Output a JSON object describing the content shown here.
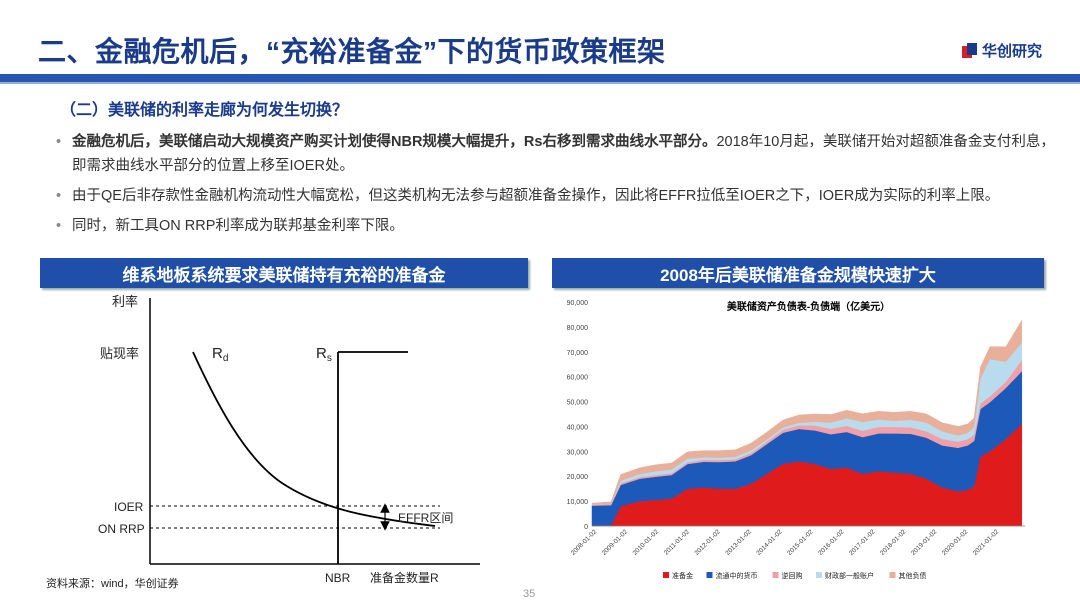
{
  "header": {
    "title": "二、金融危机后，“充裕准备金”下的货币政策框架",
    "brand": "华创研究"
  },
  "section": {
    "subtitle": "（二）美联储的利率走廊为何发生切换？"
  },
  "bullets": {
    "b1_bold": "金融危机后，美联储启动大规模资产购买计划使得NBR规模大幅提升，Rs右移到需求曲线水平部分。",
    "b1_rest": "2018年10月起，美联储开始对超额准备金支付利息，即需求曲线水平部分的位置上移至IOER处。",
    "b2": "由于QE后非存款性金融机构流动性大幅宽松，但这类机构无法参与超额准备金操作，因此将EFFR拉低至IOER之下，IOER成为实际的利率上限。",
    "b3": "同时，新工具ON RRP利率成为联邦基金利率下限。"
  },
  "left_panel": {
    "title": "维系地板系统要求美联储持有充裕的准备金",
    "y_axis_label": "利率",
    "discount_rate": "贴现率",
    "rd_label": "R",
    "rd_sub": "d",
    "rs_label": "R",
    "rs_sub": "s",
    "ioer": "IOER",
    "onrrp": "ON RRP",
    "effr_band": "EFFR区间",
    "nbr": "NBR",
    "x_axis_label": "准备金数量R"
  },
  "right_panel": {
    "title": "2008年后美联储准备金规模快速扩大"
  },
  "chart_data": {
    "type": "area",
    "title": "美联储资产负债表-负债端（亿美元）",
    "ylim": [
      0,
      90000
    ],
    "yticks": [
      "0",
      "10,000",
      "20,000",
      "30,000",
      "40,000",
      "50,000",
      "60,000",
      "70,000",
      "80,000",
      "90,000"
    ],
    "xticks": [
      "2008-01-02",
      "2009-01-02",
      "2010-01-02",
      "2011-01-02",
      "2012-01-02",
      "2013-01-02",
      "2014-01-02",
      "2015-01-02",
      "2016-01-02",
      "2017-01-02",
      "2018-01-02",
      "2019-01-02",
      "2020-01-02",
      "2021-01-02"
    ],
    "x": [
      2008.0,
      2008.6,
      2008.9,
      2009.5,
      2010.0,
      2010.5,
      2011.0,
      2011.5,
      2012.0,
      2012.5,
      2013.0,
      2013.5,
      2014.0,
      2014.5,
      2015.0,
      2015.5,
      2016.0,
      2016.5,
      2017.0,
      2017.5,
      2018.0,
      2018.5,
      2019.0,
      2019.5,
      2019.8,
      2020.0,
      2020.2,
      2020.5,
      2021.0,
      2021.5
    ],
    "series": [
      {
        "name": "准备金",
        "color": "#e01b1b",
        "values": [
          200,
          300,
          8000,
          10000,
          10500,
          11000,
          15000,
          15500,
          15000,
          15000,
          17000,
          21000,
          25000,
          26000,
          25000,
          23000,
          23500,
          21000,
          22000,
          21500,
          21000,
          19000,
          15500,
          14000,
          14500,
          16000,
          28000,
          30000,
          35000,
          41000
        ]
      },
      {
        "name": "流通中的货币",
        "color": "#1c59b8",
        "values": [
          8000,
          8100,
          8500,
          9000,
          9300,
          9500,
          9900,
          10300,
          10700,
          11000,
          11500,
          12000,
          12500,
          13000,
          13400,
          13900,
          14300,
          14700,
          15200,
          15700,
          16100,
          16500,
          16900,
          17400,
          17900,
          18200,
          19000,
          19800,
          20500,
          21200
        ]
      },
      {
        "name": "逆回购",
        "color": "#f2a0a8",
        "values": [
          400,
          500,
          700,
          700,
          700,
          700,
          700,
          800,
          800,
          800,
          900,
          1000,
          1200,
          1500,
          2000,
          2200,
          2500,
          2600,
          2600,
          2600,
          2600,
          2600,
          2600,
          2500,
          2500,
          2500,
          2300,
          2300,
          2500,
          4500
        ]
      },
      {
        "name": "财政部一般账户",
        "color": "#b8dcee",
        "values": [
          100,
          200,
          1000,
          1200,
          1500,
          1500,
          1500,
          1000,
          1000,
          1000,
          1000,
          800,
          900,
          1000,
          1500,
          2500,
          3000,
          3500,
          3000,
          2500,
          3000,
          3500,
          3000,
          2500,
          2500,
          3000,
          10000,
          15000,
          8000,
          7000
        ]
      },
      {
        "name": "其他负债",
        "color": "#e8b09a",
        "values": [
          500,
          600,
          2500,
          2500,
          2600,
          2600,
          2700,
          2700,
          2800,
          2800,
          2900,
          3000,
          3000,
          3100,
          3100,
          3200,
          3200,
          3300,
          3300,
          3400,
          3400,
          3500,
          3500,
          3600,
          3600,
          3700,
          4500,
          5000,
          6000,
          9000
        ]
      }
    ]
  },
  "footer": {
    "source": "资料来源：wind，华创证券",
    "page": "35"
  }
}
